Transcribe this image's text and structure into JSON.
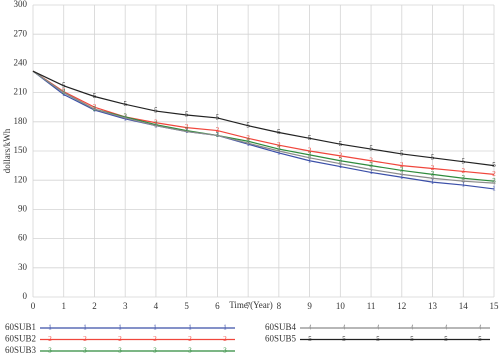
{
  "chart_data": {
    "type": "line",
    "x_label": "Time (Year)",
    "y_label": "dollars/kWh",
    "x": [
      0,
      1,
      2,
      3,
      4,
      5,
      6,
      7,
      8,
      9,
      10,
      11,
      12,
      13,
      14,
      15
    ],
    "xlim": [
      0,
      15
    ],
    "xticks": [
      0,
      1,
      2,
      3,
      4,
      5,
      6,
      7,
      8,
      9,
      10,
      11,
      12,
      13,
      14,
      15
    ],
    "ylim": [
      0,
      300
    ],
    "yticks": [
      0,
      30,
      60,
      90,
      120,
      150,
      180,
      210,
      240,
      270,
      300
    ],
    "grid": true,
    "series": [
      {
        "name": "60SUB1",
        "marker": "1",
        "color": "#3b4fa8",
        "values": [
          232,
          208,
          192,
          183,
          176,
          170,
          166,
          157,
          148,
          140,
          134,
          128,
          123,
          118,
          115,
          111
        ]
      },
      {
        "name": "60SUB2",
        "marker": "2",
        "color": "#f0463c",
        "values": [
          232,
          211,
          195,
          185,
          179,
          174,
          171,
          163,
          156,
          150,
          145,
          140,
          135,
          132,
          129,
          126
        ]
      },
      {
        "name": "60SUB3",
        "marker": "3",
        "color": "#2e8b3c",
        "values": [
          232,
          210,
          193,
          185,
          177,
          171,
          166,
          160,
          152,
          146,
          140,
          135,
          130,
          126,
          122,
          119
        ]
      },
      {
        "name": "60SUB4",
        "marker": "4",
        "color": "#8c8c8c",
        "values": [
          232,
          210,
          193,
          184,
          176,
          170,
          166,
          158,
          150,
          143,
          137,
          131,
          126,
          122,
          119,
          117
        ]
      },
      {
        "name": "60SUB5",
        "marker": "5",
        "color": "#222222",
        "values": [
          232,
          217,
          206,
          198,
          191,
          187,
          184,
          176,
          169,
          163,
          157,
          152,
          147,
          143,
          139,
          135
        ]
      }
    ]
  }
}
